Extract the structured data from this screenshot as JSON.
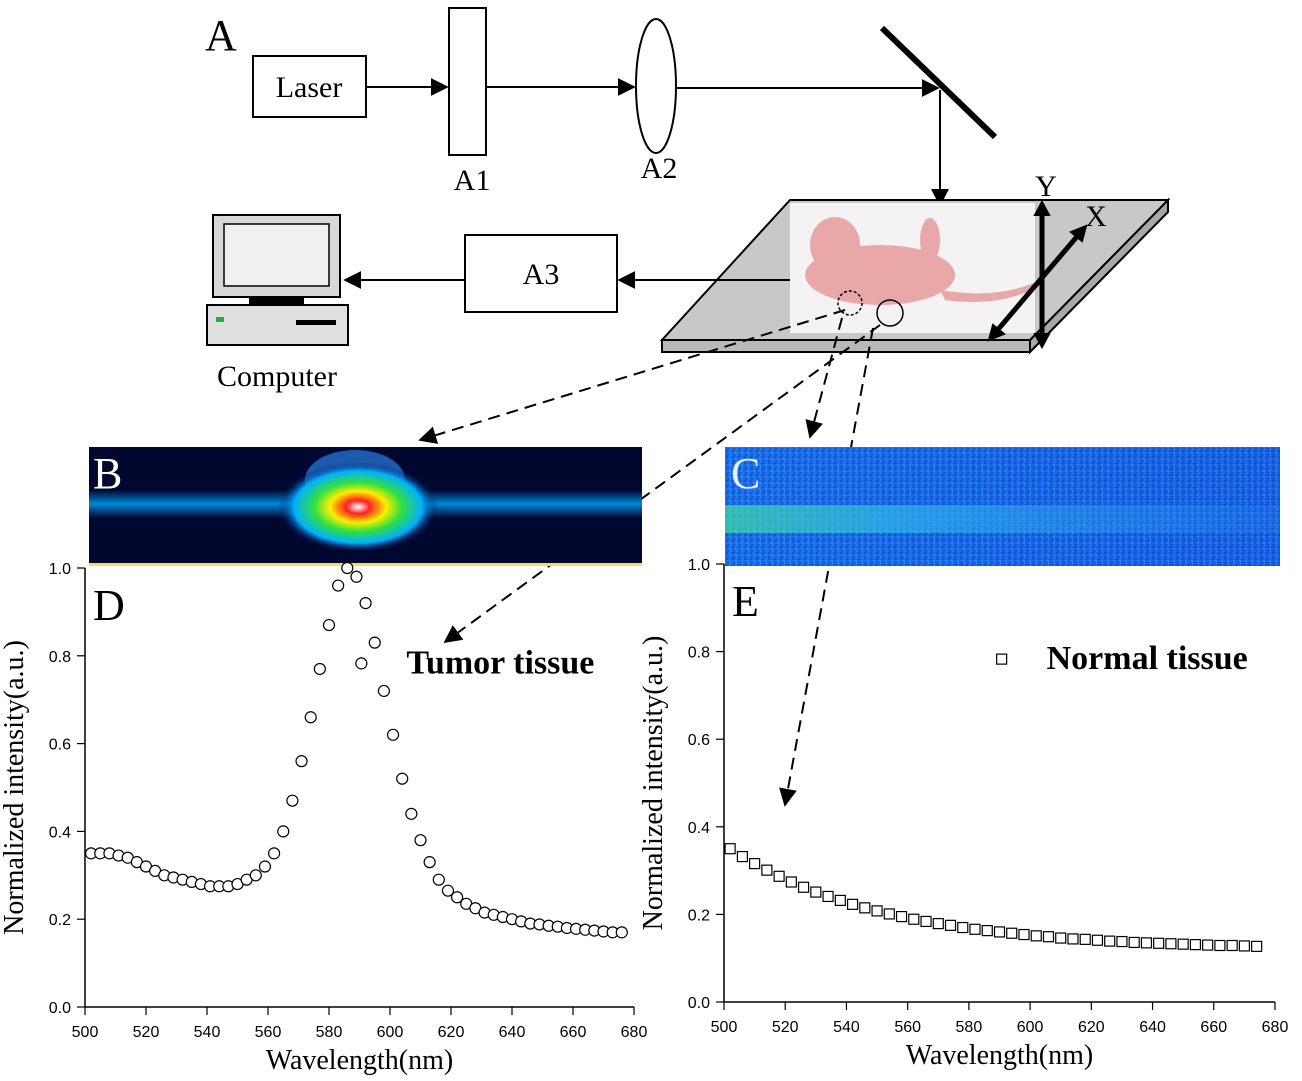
{
  "diagram": {
    "panel_a": "A",
    "laser": "Laser",
    "a1": "A1",
    "a2": "A2",
    "a3": "A3",
    "computer": "Computer",
    "axis_y": "Y",
    "axis_x": "X",
    "panel_b": "B",
    "panel_c": "C"
  },
  "chart_data": [
    {
      "type": "scatter",
      "panel": "D",
      "x_label": "Wavelength(nm)",
      "y_label": "Normalized intensity(a.u.)",
      "xlim": [
        500,
        680
      ],
      "ylim": [
        0,
        1
      ],
      "xticks": [
        500,
        520,
        540,
        560,
        580,
        600,
        620,
        640,
        660,
        680
      ],
      "yticks": [
        {
          "value": 0,
          "label": "0.0"
        },
        0.2,
        0.4,
        0.6,
        0.8,
        {
          "value": 1,
          "label": "1.0"
        }
      ],
      "legend": "upper right",
      "x": [
        502,
        505,
        508,
        511,
        514,
        517,
        520,
        523,
        526,
        529,
        532,
        535,
        538,
        541,
        544,
        547,
        550,
        553,
        556,
        559,
        562,
        565,
        568,
        571,
        574,
        577,
        580,
        583,
        586,
        589,
        592,
        595,
        598,
        601,
        604,
        607,
        610,
        613,
        616,
        619,
        622,
        625,
        628,
        631,
        634,
        637,
        640,
        643,
        646,
        649,
        652,
        655,
        658,
        661,
        664,
        667,
        670,
        673,
        676
      ],
      "series": [
        {
          "name": "Tumor tissue",
          "color": "#000000",
          "marker": "circle",
          "values": [
            0.35,
            0.35,
            0.35,
            0.345,
            0.34,
            0.33,
            0.32,
            0.31,
            0.3,
            0.295,
            0.29,
            0.285,
            0.28,
            0.275,
            0.275,
            0.275,
            0.28,
            0.29,
            0.3,
            0.32,
            0.35,
            0.4,
            0.47,
            0.56,
            0.66,
            0.77,
            0.87,
            0.96,
            1.0,
            0.98,
            0.92,
            0.83,
            0.72,
            0.62,
            0.52,
            0.44,
            0.38,
            0.33,
            0.29,
            0.265,
            0.25,
            0.235,
            0.225,
            0.215,
            0.21,
            0.205,
            0.2,
            0.195,
            0.19,
            0.188,
            0.185,
            0.183,
            0.18,
            0.178,
            0.176,
            0.174,
            0.172,
            0.17,
            0.17
          ]
        }
      ]
    },
    {
      "type": "scatter",
      "panel": "E",
      "x_label": "Wavelength(nm)",
      "y_label": "Normalized intensity(a.u.)",
      "xlim": [
        500,
        680
      ],
      "ylim": [
        0,
        1
      ],
      "xticks": [
        500,
        520,
        540,
        560,
        580,
        600,
        620,
        640,
        660,
        680
      ],
      "yticks": [
        {
          "value": 0,
          "label": "0.0"
        },
        0.2,
        0.4,
        0.6,
        0.8,
        {
          "value": 1,
          "label": "1.0"
        }
      ],
      "legend": "upper right",
      "x": [
        502,
        506,
        510,
        514,
        518,
        522,
        526,
        530,
        534,
        538,
        542,
        546,
        550,
        554,
        558,
        562,
        566,
        570,
        574,
        578,
        582,
        586,
        590,
        594,
        598,
        602,
        606,
        610,
        614,
        618,
        622,
        626,
        630,
        634,
        638,
        642,
        646,
        650,
        654,
        658,
        662,
        666,
        670,
        674
      ],
      "series": [
        {
          "name": "Normal tissue",
          "color": "#000000",
          "marker": "square",
          "values": [
            0.35,
            0.332,
            0.316,
            0.301,
            0.287,
            0.274,
            0.262,
            0.251,
            0.241,
            0.232,
            0.223,
            0.215,
            0.208,
            0.201,
            0.195,
            0.189,
            0.184,
            0.179,
            0.175,
            0.17,
            0.166,
            0.163,
            0.16,
            0.157,
            0.154,
            0.151,
            0.149,
            0.146,
            0.144,
            0.143,
            0.141,
            0.139,
            0.138,
            0.136,
            0.135,
            0.134,
            0.133,
            0.132,
            0.131,
            0.13,
            0.129,
            0.129,
            0.128,
            0.127
          ]
        }
      ]
    }
  ]
}
